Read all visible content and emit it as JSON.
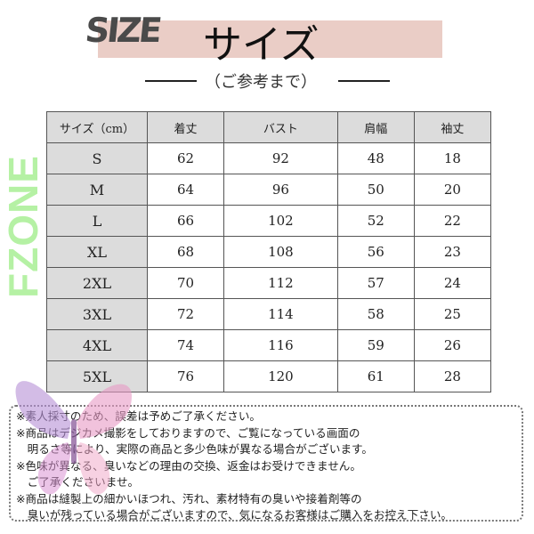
{
  "header": {
    "logo_text": "SIZE",
    "title": "サイズ",
    "subtitle": "（ご参考まで）",
    "band_color": "#eacdc6"
  },
  "table": {
    "columns": [
      "サイズ（cm）",
      "着丈",
      "バスト",
      "肩幅",
      "袖丈"
    ],
    "rows": [
      [
        "S",
        "62",
        "92",
        "48",
        "18"
      ],
      [
        "M",
        "64",
        "96",
        "50",
        "20"
      ],
      [
        "L",
        "66",
        "102",
        "52",
        "22"
      ],
      [
        "XL",
        "68",
        "108",
        "56",
        "23"
      ],
      [
        "2XL",
        "70",
        "112",
        "57",
        "24"
      ],
      [
        "3XL",
        "72",
        "114",
        "58",
        "25"
      ],
      [
        "4XL",
        "74",
        "116",
        "59",
        "26"
      ],
      [
        "5XL",
        "76",
        "120",
        "61",
        "28"
      ]
    ]
  },
  "watermark": "FZONE",
  "notes": [
    "※素人採寸のため、誤差は予めご了承ください。",
    "※商品はデジカメ撮影をしておりますので、ご覧になっている画面の",
    "　明るさ等により、実際の商品と多少色味が異なる場合がございます。",
    "※色味が異なる、臭いなどの理由の交換、返金はお受けできません。",
    "　ご了承くださいませ。",
    "※商品は縫製上の細かいほつれ、汚れ、素材特有の臭いや接着剤等の",
    "　臭いが残っている場合がございますので、気になるお客様はご購入をお控え下さい。"
  ],
  "decor": {
    "icon": "butterfly-icon"
  }
}
